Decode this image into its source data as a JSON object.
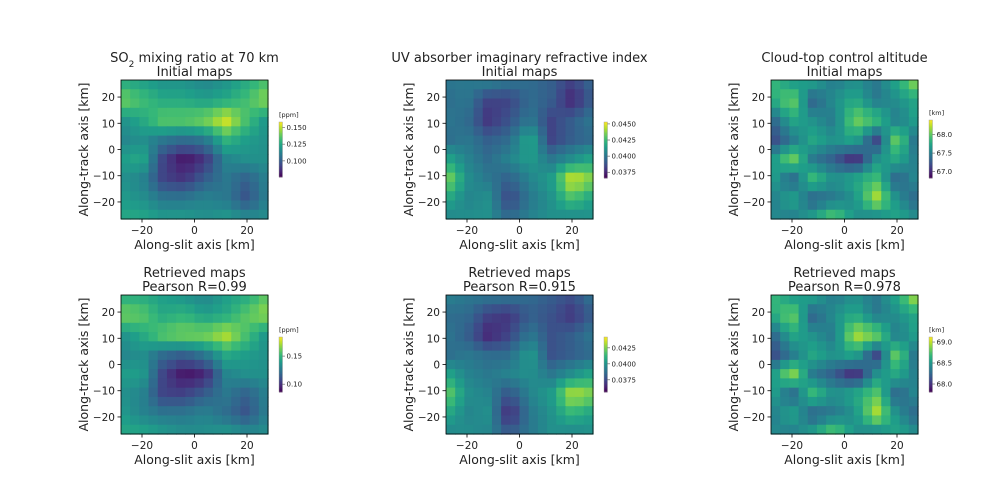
{
  "chart_data": [
    {
      "type": "heatmap",
      "title_parts": [
        "SO",
        "2",
        " mixing ratio at 70 km"
      ],
      "subtitle": "Initial maps",
      "xlabel": "Along-slit axis [km]",
      "ylabel": "Along-track axis [km]",
      "xlim": [
        -28,
        28
      ],
      "ylim": [
        -26.5,
        26.5
      ],
      "xticks": [
        -20,
        0,
        20
      ],
      "yticks": [
        -20,
        -10,
        0,
        10,
        20
      ],
      "colorbar_label": "[ppm]",
      "clim": [
        0.076,
        0.158
      ],
      "colorbar_ticks": [
        "0.100",
        "0.125",
        "0.150"
      ],
      "colormap": "viridis",
      "grid_normalized": [
        [
          0.6,
          0.55,
          0.5,
          0.5,
          0.45,
          0.5,
          0.6,
          0.7
        ],
        [
          0.8,
          0.7,
          0.6,
          0.6,
          0.55,
          0.6,
          0.7,
          0.85
        ],
        [
          0.5,
          0.6,
          0.75,
          0.75,
          0.8,
          0.95,
          0.7,
          0.5
        ],
        [
          0.45,
          0.5,
          0.4,
          0.35,
          0.4,
          0.65,
          0.55,
          0.5
        ],
        [
          0.55,
          0.6,
          0.2,
          0.05,
          0.15,
          0.45,
          0.5,
          0.5
        ],
        [
          0.5,
          0.45,
          0.2,
          0.15,
          0.3,
          0.4,
          0.3,
          0.45
        ],
        [
          0.55,
          0.5,
          0.4,
          0.4,
          0.45,
          0.4,
          0.25,
          0.45
        ],
        [
          0.6,
          0.6,
          0.55,
          0.55,
          0.5,
          0.55,
          0.5,
          0.5
        ]
      ]
    },
    {
      "type": "heatmap",
      "title_parts": [
        "UV absorber imaginary refractive index"
      ],
      "subtitle": "Initial maps",
      "xlabel": "Along-slit axis [km]",
      "ylabel": "Along-track axis [km]",
      "xlim": [
        -28,
        28
      ],
      "ylim": [
        -26.5,
        26.5
      ],
      "xticks": [
        -20,
        0,
        20
      ],
      "yticks": [
        -20,
        -10,
        0,
        10,
        20
      ],
      "colorbar_label": "",
      "clim": [
        0.0366,
        0.0453
      ],
      "colorbar_ticks": [
        "0.0375",
        "0.0400",
        "0.0425",
        "0.0450"
      ],
      "colormap": "viridis",
      "grid_normalized": [
        [
          0.4,
          0.4,
          0.45,
          0.4,
          0.35,
          0.3,
          0.2,
          0.35
        ],
        [
          0.35,
          0.4,
          0.2,
          0.2,
          0.35,
          0.3,
          0.1,
          0.3
        ],
        [
          0.4,
          0.35,
          0.15,
          0.25,
          0.4,
          0.2,
          0.3,
          0.4
        ],
        [
          0.35,
          0.4,
          0.3,
          0.35,
          0.6,
          0.2,
          0.3,
          0.35
        ],
        [
          0.6,
          0.45,
          0.35,
          0.45,
          0.55,
          0.4,
          0.5,
          0.6
        ],
        [
          0.85,
          0.5,
          0.4,
          0.3,
          0.45,
          0.55,
          0.95,
          0.8
        ],
        [
          0.6,
          0.45,
          0.5,
          0.2,
          0.4,
          0.5,
          0.7,
          0.55
        ],
        [
          0.45,
          0.5,
          0.5,
          0.35,
          0.45,
          0.5,
          0.45,
          0.5
        ]
      ]
    },
    {
      "type": "heatmap",
      "title_parts": [
        "Cloud-top control altitude"
      ],
      "subtitle": "Initial maps",
      "xlabel": "Along-slit axis [km]",
      "ylabel": "Along-track axis [km]",
      "xlim": [
        -28,
        28
      ],
      "ylim": [
        -26.5,
        26.5
      ],
      "xticks": [
        -20,
        0,
        20
      ],
      "yticks": [
        -20,
        -10,
        0,
        10,
        20
      ],
      "colorbar_label": "[km]",
      "clim": [
        66.83,
        68.39
      ],
      "colorbar_ticks": [
        "67.0",
        "67.5",
        "68.0"
      ],
      "colormap": "viridis",
      "grid_normalized": [
        [
          0.7,
          0.5,
          0.6,
          0.4,
          0.5,
          0.4,
          0.6,
          0.9
        ],
        [
          0.6,
          0.8,
          0.3,
          0.5,
          0.6,
          0.4,
          0.5,
          0.6
        ],
        [
          0.3,
          0.6,
          0.5,
          0.4,
          0.8,
          0.7,
          0.4,
          0.6
        ],
        [
          0.2,
          0.4,
          0.6,
          0.5,
          0.6,
          0.2,
          0.8,
          0.3
        ],
        [
          0.5,
          0.8,
          0.4,
          0.3,
          0.1,
          0.5,
          0.6,
          0.4
        ],
        [
          0.6,
          0.3,
          0.7,
          0.5,
          0.6,
          0.7,
          0.3,
          0.5
        ],
        [
          0.4,
          0.6,
          0.3,
          0.4,
          0.5,
          0.9,
          0.5,
          0.3
        ],
        [
          0.5,
          0.4,
          0.6,
          0.8,
          0.5,
          0.4,
          0.6,
          0.5
        ]
      ]
    },
    {
      "type": "heatmap",
      "title_parts": [
        "Retrieved maps"
      ],
      "subtitle": "Pearson R=0.99",
      "xlabel": "Along-slit axis [km]",
      "ylabel": "Along-track axis [km]",
      "xlim": [
        -28,
        28
      ],
      "ylim": [
        -26.5,
        26.5
      ],
      "xticks": [
        -20,
        0,
        20
      ],
      "yticks": [
        -20,
        -10,
        0,
        10,
        20
      ],
      "colorbar_label": "[ppm]",
      "clim": [
        0.086,
        0.184
      ],
      "colorbar_ticks": [
        "0.10",
        "0.15"
      ],
      "colormap": "viridis",
      "grid_normalized": [
        [
          0.6,
          0.6,
          0.55,
          0.5,
          0.45,
          0.55,
          0.6,
          0.75
        ],
        [
          0.8,
          0.75,
          0.6,
          0.65,
          0.55,
          0.6,
          0.75,
          0.85
        ],
        [
          0.5,
          0.6,
          0.75,
          0.8,
          0.8,
          0.9,
          0.7,
          0.5
        ],
        [
          0.45,
          0.5,
          0.35,
          0.3,
          0.4,
          0.6,
          0.55,
          0.5
        ],
        [
          0.55,
          0.55,
          0.2,
          0.05,
          0.1,
          0.45,
          0.5,
          0.5
        ],
        [
          0.5,
          0.45,
          0.2,
          0.2,
          0.3,
          0.4,
          0.3,
          0.45
        ],
        [
          0.55,
          0.45,
          0.4,
          0.4,
          0.45,
          0.35,
          0.25,
          0.45
        ],
        [
          0.6,
          0.6,
          0.55,
          0.5,
          0.5,
          0.55,
          0.5,
          0.5
        ]
      ]
    },
    {
      "type": "heatmap",
      "title_parts": [
        "Retrieved maps"
      ],
      "subtitle": "Pearson R=0.915",
      "xlabel": "Along-slit axis [km]",
      "ylabel": "Along-track axis [km]",
      "xlim": [
        -28,
        28
      ],
      "ylim": [
        -26.5,
        26.5
      ],
      "xticks": [
        -20,
        0,
        20
      ],
      "yticks": [
        -20,
        -10,
        0,
        10,
        20
      ],
      "colorbar_label": "",
      "clim": [
        0.0356,
        0.0442
      ],
      "colorbar_ticks": [
        "0.0375",
        "0.0400",
        "0.0425"
      ],
      "colormap": "viridis",
      "grid_normalized": [
        [
          0.45,
          0.4,
          0.4,
          0.4,
          0.35,
          0.3,
          0.25,
          0.4
        ],
        [
          0.35,
          0.35,
          0.2,
          0.15,
          0.3,
          0.25,
          0.15,
          0.3
        ],
        [
          0.4,
          0.3,
          0.1,
          0.2,
          0.4,
          0.25,
          0.3,
          0.4
        ],
        [
          0.35,
          0.4,
          0.35,
          0.35,
          0.55,
          0.25,
          0.3,
          0.35
        ],
        [
          0.6,
          0.45,
          0.4,
          0.45,
          0.5,
          0.4,
          0.5,
          0.6
        ],
        [
          0.8,
          0.5,
          0.45,
          0.25,
          0.45,
          0.55,
          0.9,
          0.8
        ],
        [
          0.6,
          0.45,
          0.5,
          0.1,
          0.4,
          0.5,
          0.65,
          0.55
        ],
        [
          0.45,
          0.5,
          0.45,
          0.3,
          0.4,
          0.5,
          0.45,
          0.5
        ]
      ]
    },
    {
      "type": "heatmap",
      "title_parts": [
        "Retrieved maps"
      ],
      "subtitle": "Pearson R=0.978",
      "xlabel": "Along-slit axis [km]",
      "ylabel": "Along-track axis [km]",
      "xlim": [
        -28,
        28
      ],
      "ylim": [
        -26.5,
        26.5
      ],
      "xticks": [
        -20,
        0,
        20
      ],
      "yticks": [
        -20,
        -10,
        0,
        10,
        20
      ],
      "colorbar_label": "[km]",
      "clim": [
        67.81,
        69.12
      ],
      "colorbar_ticks": [
        "68.0",
        "68.5",
        "69.0"
      ],
      "colormap": "viridis",
      "grid_normalized": [
        [
          0.7,
          0.5,
          0.6,
          0.4,
          0.5,
          0.4,
          0.6,
          0.95
        ],
        [
          0.6,
          0.8,
          0.3,
          0.5,
          0.6,
          0.4,
          0.5,
          0.6
        ],
        [
          0.3,
          0.6,
          0.5,
          0.4,
          0.9,
          0.8,
          0.4,
          0.6
        ],
        [
          0.2,
          0.4,
          0.6,
          0.5,
          0.6,
          0.2,
          0.8,
          0.3
        ],
        [
          0.5,
          0.85,
          0.4,
          0.3,
          0.1,
          0.5,
          0.6,
          0.4
        ],
        [
          0.6,
          0.3,
          0.7,
          0.5,
          0.6,
          0.75,
          0.3,
          0.5
        ],
        [
          0.4,
          0.6,
          0.3,
          0.4,
          0.5,
          0.9,
          0.5,
          0.3
        ],
        [
          0.5,
          0.4,
          0.6,
          0.8,
          0.5,
          0.4,
          0.6,
          0.5
        ]
      ]
    }
  ]
}
